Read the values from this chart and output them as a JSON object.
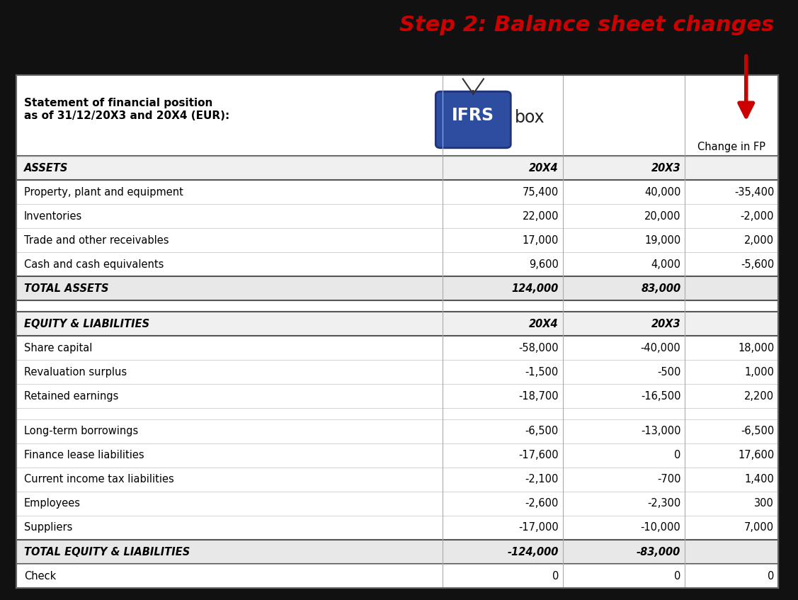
{
  "title": "Step 2: Balance sheet changes",
  "title_color": "#CC0000",
  "bg_color": "#111111",
  "rows": [
    {
      "label": "ASSETS",
      "col1": "20X4",
      "col2": "20X3",
      "col3": "",
      "style": "header",
      "bold": true
    },
    {
      "label": "Property, plant and equipment",
      "col1": "75,400",
      "col2": "40,000",
      "col3": "-35,400",
      "style": "normal",
      "bold": false
    },
    {
      "label": "Inventories",
      "col1": "22,000",
      "col2": "20,000",
      "col3": "-2,000",
      "style": "normal",
      "bold": false
    },
    {
      "label": "Trade and other receivables",
      "col1": "17,000",
      "col2": "19,000",
      "col3": "2,000",
      "style": "normal",
      "bold": false
    },
    {
      "label": "Cash and cash equivalents",
      "col1": "9,600",
      "col2": "4,000",
      "col3": "-5,600",
      "style": "normal",
      "bold": false
    },
    {
      "label": "TOTAL ASSETS",
      "col1": "124,000",
      "col2": "83,000",
      "col3": "",
      "style": "total",
      "bold": true
    },
    {
      "label": "",
      "col1": "",
      "col2": "",
      "col3": "",
      "style": "blank",
      "bold": false
    },
    {
      "label": "EQUITY & LIABILITIES",
      "col1": "20X4",
      "col2": "20X3",
      "col3": "",
      "style": "header",
      "bold": true
    },
    {
      "label": "Share capital",
      "col1": "-58,000",
      "col2": "-40,000",
      "col3": "18,000",
      "style": "normal",
      "bold": false
    },
    {
      "label": "Revaluation surplus",
      "col1": "-1,500",
      "col2": "-500",
      "col3": "1,000",
      "style": "normal",
      "bold": false
    },
    {
      "label": "Retained earnings",
      "col1": "-18,700",
      "col2": "-16,500",
      "col3": "2,200",
      "style": "normal",
      "bold": false
    },
    {
      "label": "",
      "col1": "",
      "col2": "",
      "col3": "",
      "style": "blank",
      "bold": false
    },
    {
      "label": "Long-term borrowings",
      "col1": "-6,500",
      "col2": "-13,000",
      "col3": "-6,500",
      "style": "normal",
      "bold": false
    },
    {
      "label": "Finance lease liabilities",
      "col1": "-17,600",
      "col2": "0",
      "col3": "17,600",
      "style": "normal",
      "bold": false
    },
    {
      "label": "Current income tax liabilities",
      "col1": "-2,100",
      "col2": "-700",
      "col3": "1,400",
      "style": "normal",
      "bold": false
    },
    {
      "label": "Employees",
      "col1": "-2,600",
      "col2": "-2,300",
      "col3": "300",
      "style": "normal",
      "bold": false
    },
    {
      "label": "Suppliers",
      "col1": "-17,000",
      "col2": "-10,000",
      "col3": "7,000",
      "style": "normal",
      "bold": false
    },
    {
      "label": "TOTAL EQUITY & LIABILITIES",
      "col1": "-124,000",
      "col2": "-83,000",
      "col3": "",
      "style": "total",
      "bold": true
    },
    {
      "label": "Check",
      "col1": "0",
      "col2": "0",
      "col3": "0",
      "style": "check",
      "bold": false
    }
  ]
}
